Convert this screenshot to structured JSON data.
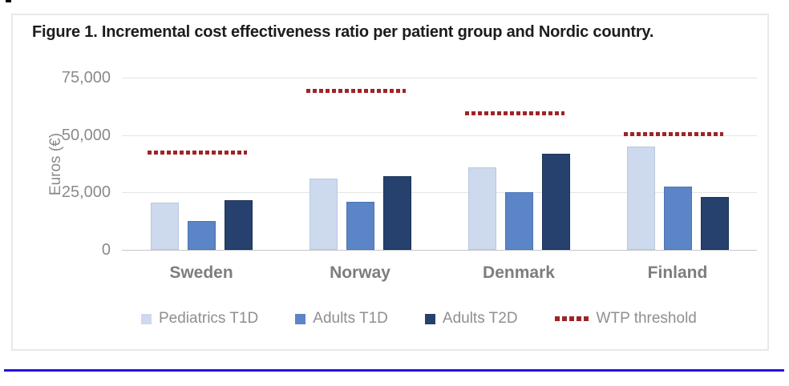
{
  "figure": {
    "title": "Figure 1. Incremental cost effectiveness ratio per patient group and Nordic country."
  },
  "chart_data": {
    "type": "bar",
    "title": "Figure 1. Incremental cost effectiveness ratio per patient group and Nordic country.",
    "xlabel": "",
    "ylabel": "Euros (€)",
    "ylim": [
      0,
      75000
    ],
    "yticks": [
      0,
      25000,
      50000,
      75000
    ],
    "ytick_labels": [
      "0",
      "25,000",
      "50,000",
      "75,000"
    ],
    "grid": true,
    "legend_position": "bottom",
    "categories": [
      "Sweden",
      "Norway",
      "Denmark",
      "Finland"
    ],
    "series": [
      {
        "name": "Pediatrics T1D",
        "color": "#cdd9ec",
        "values": [
          20500,
          31000,
          36000,
          45000
        ]
      },
      {
        "name": "Adults T1D",
        "color": "#5b85c6",
        "values": [
          12500,
          21000,
          25000,
          27500
        ]
      },
      {
        "name": "Adults T2D",
        "color": "#26416e",
        "values": [
          21500,
          32000,
          42000,
          23000
        ]
      }
    ],
    "threshold": {
      "name": "WTP threshold",
      "style": "dotted",
      "color": "#9e2428",
      "values": [
        42500,
        69500,
        59500,
        50500
      ]
    }
  },
  "colors": {
    "bar_light": "#cdd9ec",
    "bar_mid": "#5b85c6",
    "bar_dark": "#26416e",
    "threshold_red": "#9e2428",
    "axis_text": "#8a8a8a",
    "title_text": "#1c1c1c",
    "panel_border": "#e8e8ec",
    "bottom_rule_blue": "#2214dd"
  }
}
